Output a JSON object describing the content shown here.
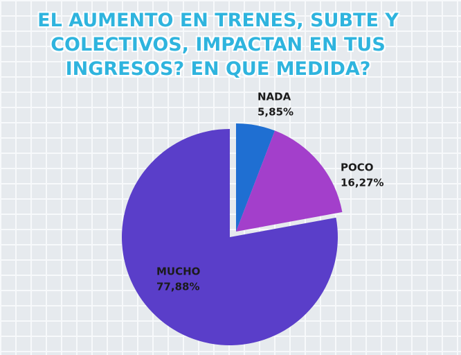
{
  "chart_data": {
    "type": "pie",
    "title": "EL AUMENTO EN TRENES, SUBTE Y COLECTIVOS, IMPACTAN EN TUS INGRESOS? EN QUE MEDIDA?",
    "categories": [
      "NADA",
      "POCO",
      "MUCHO"
    ],
    "values": [
      5.85,
      16.27,
      77.88
    ],
    "value_labels": [
      "5,85%",
      "16,27%",
      "77,88%"
    ],
    "colors": [
      "#1f6fd2",
      "#a33fcb",
      "#5a3ec9"
    ]
  }
}
